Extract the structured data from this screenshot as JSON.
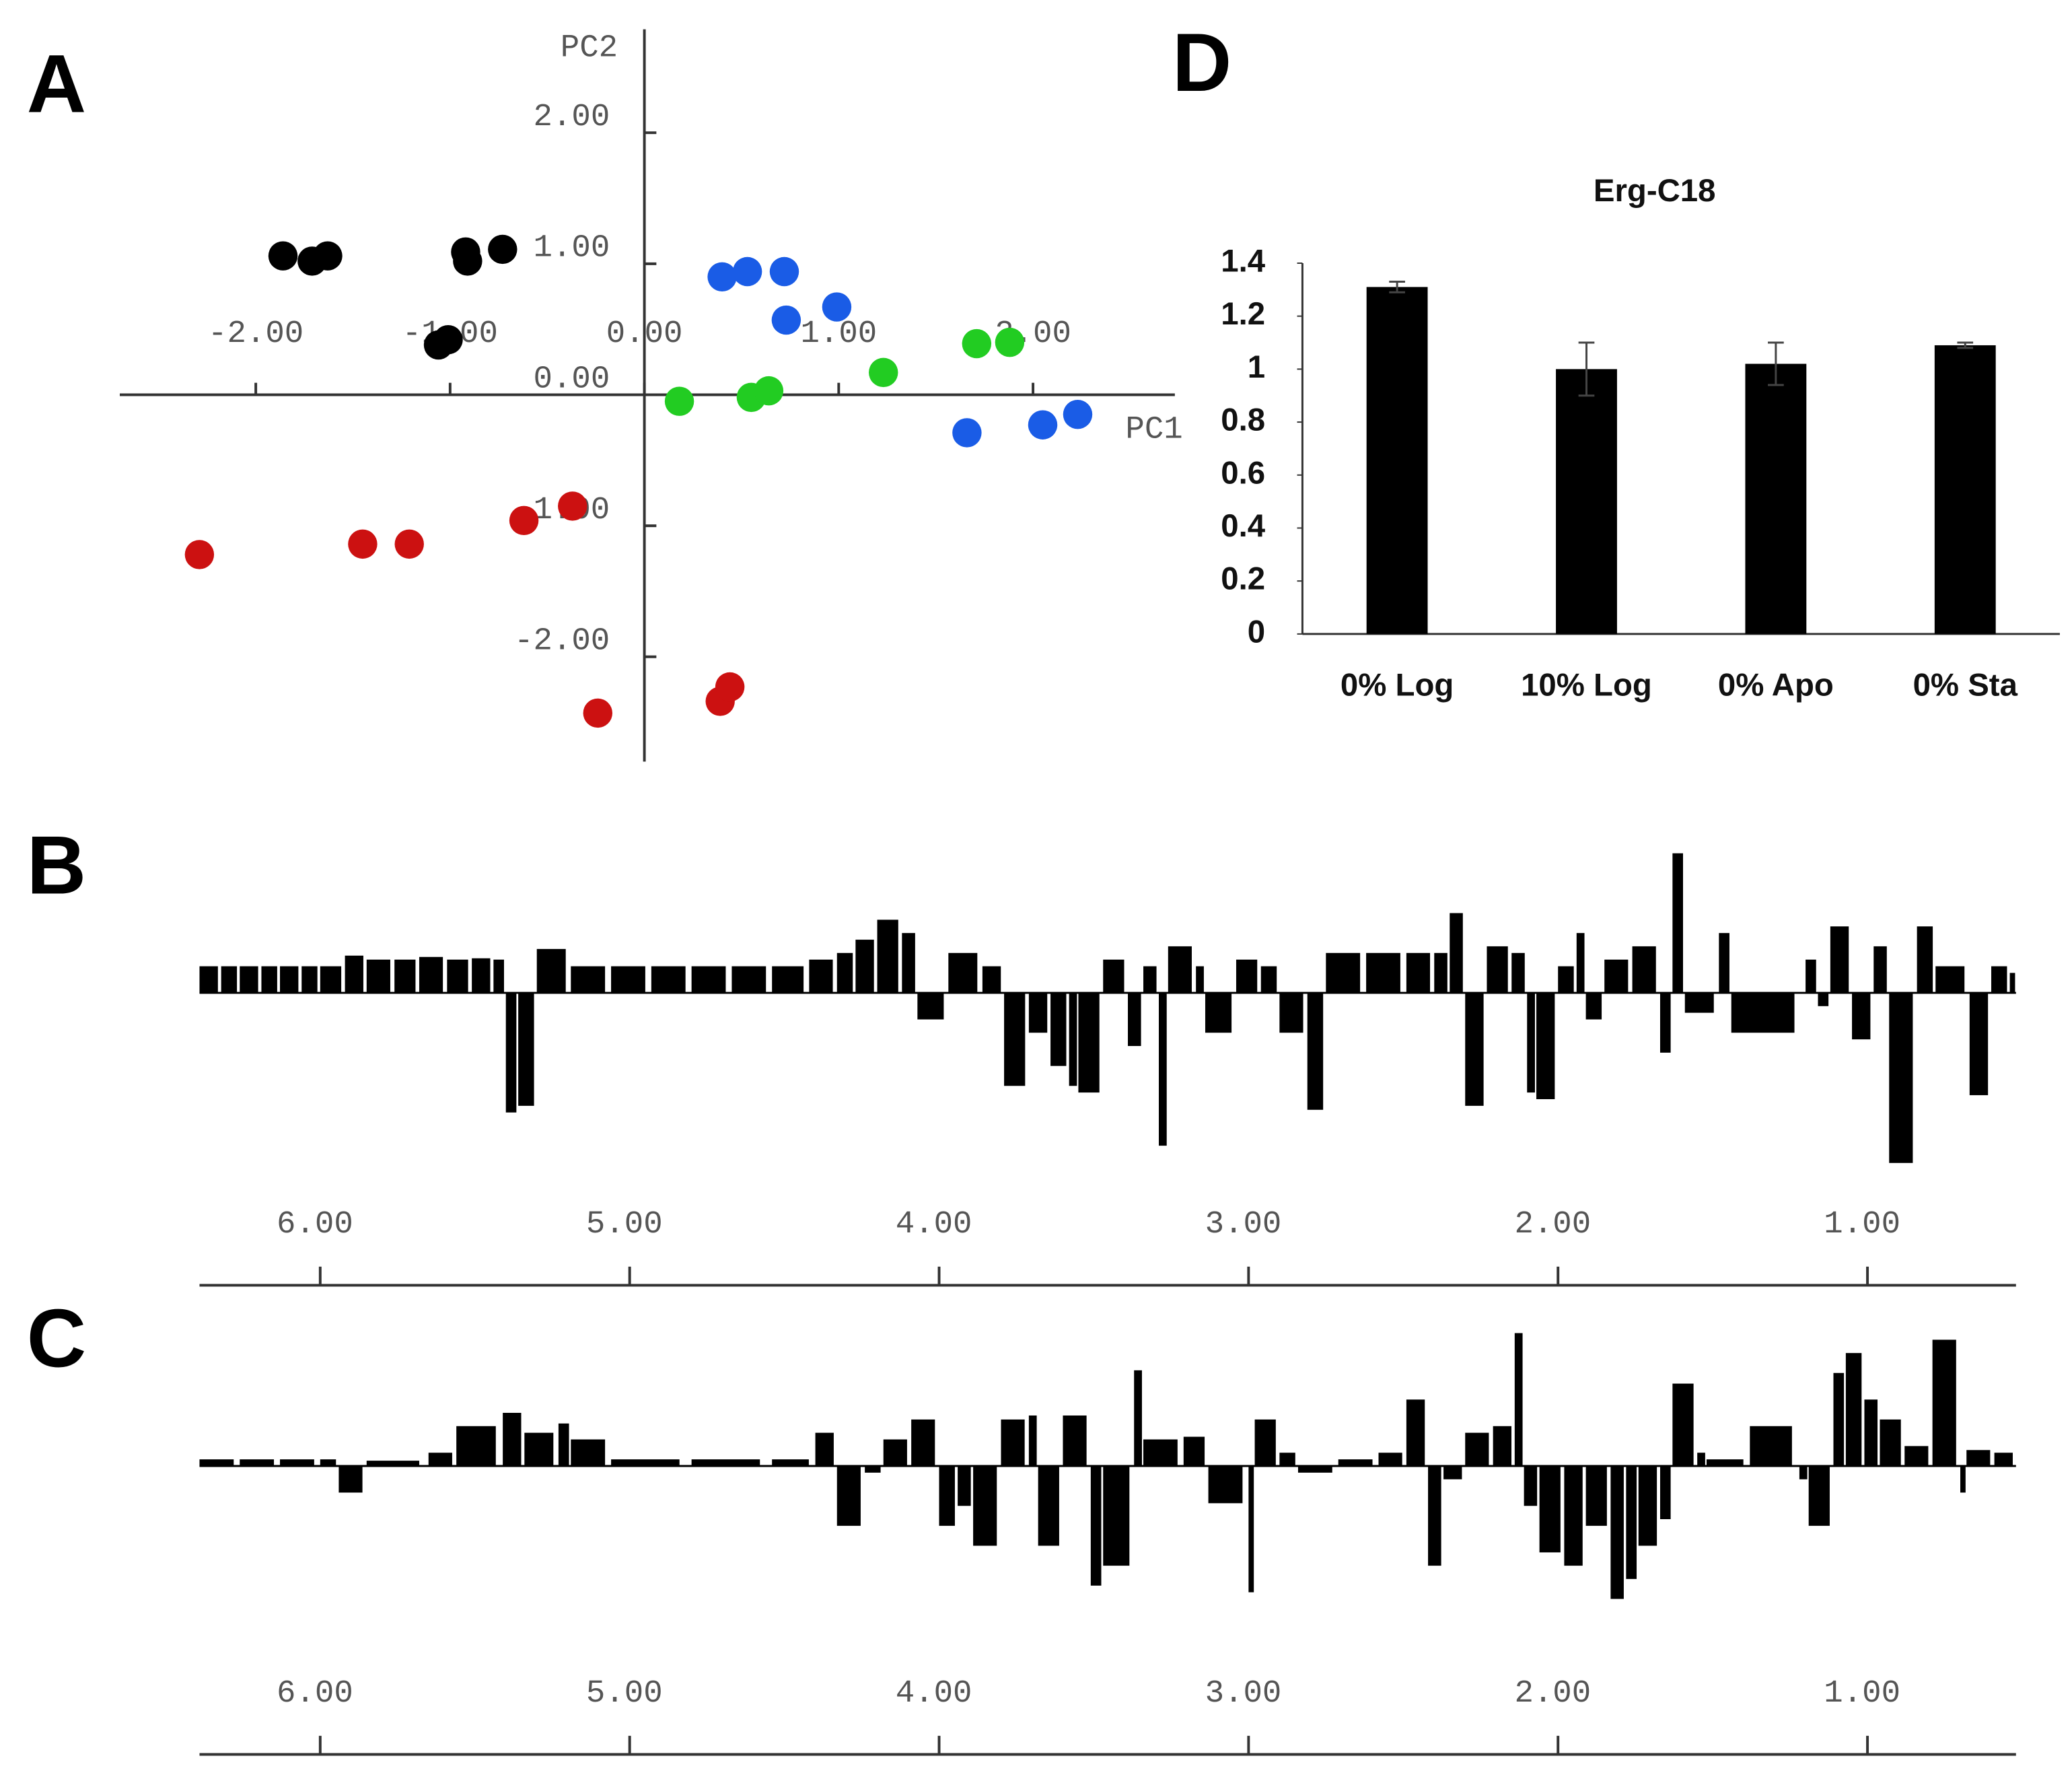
{
  "chart_data": [
    {
      "type": "scatter",
      "panel_label": "A",
      "x_label": "PC1",
      "y_label": "PC2",
      "xlim": [
        -2.7,
        2.73
      ],
      "ylim": [
        -2.8,
        2.79
      ],
      "xticks": [
        {
          "value": -2,
          "label": "-2.00"
        },
        {
          "value": -1,
          "label": "-1.00"
        },
        {
          "value": 0,
          "label": "0.00"
        },
        {
          "value": 1,
          "label": "1.00"
        },
        {
          "value": 2,
          "label": "2.00"
        }
      ],
      "yticks": [
        {
          "value": -2,
          "label": "-2.00"
        },
        {
          "value": -1,
          "label": "-1.00"
        },
        {
          "value": 0,
          "label": "0.00"
        },
        {
          "value": 1,
          "label": "1.00"
        },
        {
          "value": 2,
          "label": "2.00"
        }
      ],
      "series": [
        {
          "color": "#000000",
          "x": [
            -1.86,
            -1.71,
            -1.63,
            -0.92,
            -0.91,
            -0.73,
            -1.06,
            -1.01
          ],
          "values": [
            1.06,
            1.02,
            1.06,
            1.09,
            1.02,
            1.11,
            0.38,
            0.42
          ]
        },
        {
          "color": "#1a5ce6",
          "x": [
            0.4,
            0.53,
            0.72,
            0.73,
            0.99,
            1.66,
            2.05,
            2.23
          ],
          "values": [
            0.9,
            0.94,
            0.94,
            0.57,
            0.67,
            -0.29,
            -0.23,
            -0.15
          ]
        },
        {
          "color": "#22cc22",
          "x": [
            0.18,
            0.55,
            0.64,
            1.23,
            1.71,
            1.88
          ],
          "values": [
            -0.05,
            -0.02,
            0.03,
            0.17,
            0.39,
            0.4
          ]
        },
        {
          "color": "#cc1111",
          "x": [
            -2.29,
            -1.45,
            -1.21,
            -0.62,
            -0.37,
            -0.24,
            0.39,
            0.44
          ],
          "values": [
            -1.22,
            -1.14,
            -1.14,
            -0.96,
            -0.85,
            -2.43,
            -2.34,
            -2.23
          ]
        }
      ]
    },
    {
      "type": "bar",
      "panel_label": "D",
      "title": "Erg-C18",
      "categories": [
        "0% Log",
        "10% Log",
        "0% Apo",
        "0% Sta"
      ],
      "values": [
        1.31,
        1.0,
        1.02,
        1.09
      ],
      "errors": [
        0.02,
        0.1,
        0.08,
        0.01
      ],
      "color": "#000000",
      "ylim": [
        0,
        1.4
      ],
      "yticks": [
        0,
        0.2,
        0.4,
        0.6,
        0.8,
        1,
        1.2,
        1.4
      ]
    },
    {
      "type": "bar",
      "panel_label": "B",
      "color": "#000000",
      "xlim": [
        6.39,
        0.52
      ],
      "ylim": [
        -1.4,
        1.2
      ],
      "xticks": [
        {
          "value": 6,
          "label": "6.00"
        },
        {
          "value": 5,
          "label": "5.00"
        },
        {
          "value": 4,
          "label": "4.00"
        },
        {
          "value": 3,
          "label": "3.00"
        },
        {
          "value": 2,
          "label": "2.00"
        },
        {
          "value": 1,
          "label": "1.00"
        }
      ],
      "x": [
        6.39,
        6.32,
        6.26,
        6.19,
        6.13,
        6.06,
        6.0,
        5.92,
        5.85,
        5.76,
        5.68,
        5.59,
        5.51,
        5.44,
        5.4,
        5.36,
        5.3,
        5.19,
        5.06,
        4.93,
        4.8,
        4.67,
        4.54,
        4.42,
        4.33,
        4.27,
        4.2,
        4.12,
        4.07,
        3.97,
        3.86,
        3.79,
        3.71,
        3.64,
        3.58,
        3.55,
        3.47,
        3.39,
        3.34,
        3.29,
        3.26,
        3.17,
        3.14,
        3.04,
        2.96,
        2.9,
        2.81,
        2.75,
        2.62,
        2.49,
        2.4,
        2.35,
        2.3,
        2.23,
        2.15,
        2.1,
        2.07,
        2.0,
        1.94,
        1.91,
        1.85,
        1.76,
        1.67,
        1.63,
        1.59,
        1.48,
        1.44,
        1.2,
        1.16,
        1.12,
        1.05,
        0.98,
        0.93,
        0.84,
        0.78,
        0.67,
        0.6,
        0.54
      ],
      "values": [
        0.2,
        0.2,
        0.2,
        0.2,
        0.2,
        0.2,
        0.2,
        0.28,
        0.25,
        0.25,
        0.27,
        0.25,
        0.26,
        0.25,
        -0.9,
        -0.85,
        0.33,
        0.2,
        0.2,
        0.2,
        0.2,
        0.2,
        0.2,
        0.25,
        0.3,
        0.4,
        0.55,
        0.45,
        -0.2,
        0.3,
        0.2,
        -0.7,
        -0.3,
        -0.55,
        -0.7,
        -0.75,
        0.25,
        -0.4,
        0.2,
        -1.15,
        0.35,
        0.2,
        -0.3,
        0.25,
        0.2,
        -0.3,
        -0.88,
        0.3,
        0.3,
        0.3,
        0.3,
        0.6,
        -0.85,
        0.35,
        0.3,
        -0.75,
        -0.8,
        0.2,
        0.45,
        -0.2,
        0.25,
        0.35,
        -0.45,
        1.05,
        -0.15,
        0.45,
        -0.3,
        0.25,
        -0.1,
        0.5,
        -0.35,
        0.35,
        -1.28,
        0.5,
        0.2,
        -0.77,
        0.2,
        0.15
      ]
    },
    {
      "type": "bar",
      "panel_label": "C",
      "color": "#000000",
      "xlim": [
        6.39,
        0.52
      ],
      "ylim": [
        -1.2,
        1.1
      ],
      "xticks": [
        {
          "value": 6,
          "label": "6.00"
        },
        {
          "value": 5,
          "label": "5.00"
        },
        {
          "value": 4,
          "label": "4.00"
        },
        {
          "value": 3,
          "label": "3.00"
        },
        {
          "value": 2,
          "label": "2.00"
        },
        {
          "value": 1,
          "label": "1.00"
        }
      ],
      "x": [
        6.39,
        6.26,
        6.13,
        6.0,
        5.94,
        5.85,
        5.65,
        5.56,
        5.41,
        5.34,
        5.23,
        5.19,
        5.06,
        4.8,
        4.54,
        4.4,
        4.33,
        4.24,
        4.18,
        4.09,
        4.0,
        3.94,
        3.89,
        3.8,
        3.71,
        3.68,
        3.6,
        3.51,
        3.47,
        3.37,
        3.34,
        3.21,
        3.13,
        3.0,
        2.98,
        2.9,
        2.84,
        2.71,
        2.58,
        2.49,
        2.42,
        2.37,
        2.3,
        2.21,
        2.14,
        2.11,
        2.06,
        1.98,
        1.91,
        1.83,
        1.78,
        1.74,
        1.67,
        1.63,
        1.55,
        1.52,
        1.38,
        1.22,
        1.19,
        1.11,
        1.07,
        1.01,
        0.96,
        0.88,
        0.79,
        0.7,
        0.68,
        0.59
      ],
      "values": [
        0.05,
        0.05,
        0.05,
        0.05,
        -0.2,
        0.04,
        0.1,
        0.3,
        0.4,
        0.25,
        0.32,
        0.2,
        0.05,
        0.05,
        0.05,
        0.25,
        -0.45,
        -0.05,
        0.2,
        0.35,
        -0.45,
        -0.3,
        -0.6,
        0.35,
        0.38,
        -0.6,
        0.38,
        -0.9,
        -0.75,
        0.72,
        0.2,
        0.22,
        -0.28,
        -0.95,
        0.35,
        0.1,
        -0.05,
        0.05,
        0.1,
        0.5,
        -0.75,
        -0.1,
        0.25,
        0.3,
        1.0,
        -0.3,
        -0.65,
        -0.75,
        -0.45,
        -1.0,
        -0.85,
        -0.6,
        -0.4,
        0.62,
        0.1,
        0.05,
        0.3,
        -0.1,
        -0.45,
        0.7,
        0.85,
        0.5,
        0.35,
        0.15,
        0.95,
        -0.2,
        0.12,
        0.1
      ]
    }
  ]
}
